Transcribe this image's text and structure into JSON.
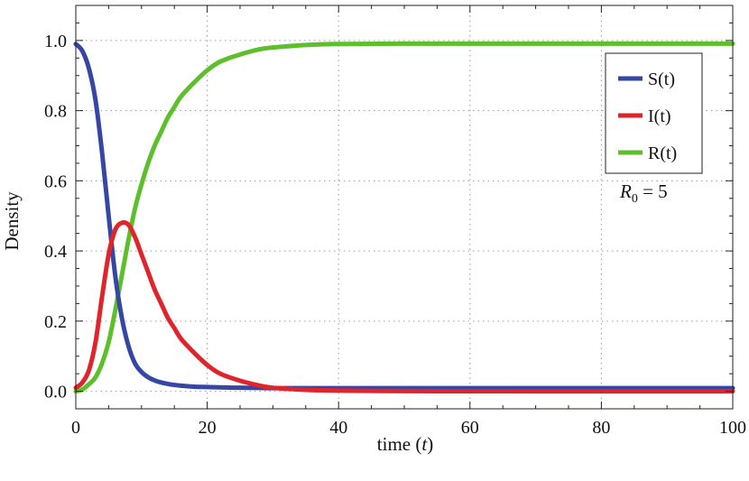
{
  "chart_data": {
    "type": "line",
    "xlabel_prefix": "time (",
    "xlabel_var": "t",
    "xlabel_suffix": ")",
    "ylabel": "Density",
    "xlim": [
      0,
      100
    ],
    "ylim": [
      -0.05,
      1.1
    ],
    "xticks": [
      0,
      20,
      40,
      60,
      80,
      100
    ],
    "yticks": [
      0.0,
      0.2,
      0.4,
      0.6,
      0.8,
      1.0
    ],
    "ytick_labels": [
      "0.0",
      "0.2",
      "0.4",
      "0.6",
      "0.8",
      "1.0"
    ],
    "grid": "dotted",
    "legend_position": "top-right",
    "x": [
      0,
      1,
      2,
      3,
      4,
      5,
      6,
      7,
      8,
      9,
      10,
      11,
      12,
      13,
      14,
      15,
      16,
      18,
      20,
      22,
      25,
      28,
      30,
      35,
      40,
      50,
      60,
      70,
      80,
      90,
      100
    ],
    "series": [
      {
        "name": "S(t)",
        "color": "#3646a3",
        "values": [
          0.99,
          0.97,
          0.92,
          0.83,
          0.68,
          0.5,
          0.33,
          0.21,
          0.13,
          0.08,
          0.055,
          0.04,
          0.031,
          0.025,
          0.021,
          0.018,
          0.016,
          0.013,
          0.012,
          0.011,
          0.01,
          0.0095,
          0.009,
          0.009,
          0.009,
          0.009,
          0.009,
          0.009,
          0.009,
          0.009,
          0.009
        ]
      },
      {
        "name": "I(t)",
        "color": "#e0242b",
        "values": [
          0.01,
          0.025,
          0.06,
          0.14,
          0.27,
          0.39,
          0.46,
          0.48,
          0.475,
          0.44,
          0.39,
          0.34,
          0.29,
          0.25,
          0.21,
          0.18,
          0.15,
          0.11,
          0.075,
          0.05,
          0.03,
          0.016,
          0.01,
          0.004,
          0.002,
          0.0005,
          0.0002,
          0.0,
          0.0,
          0.0,
          0.0
        ]
      },
      {
        "name": "R(t)",
        "color": "#5dbf2c",
        "values": [
          0.0,
          0.005,
          0.02,
          0.04,
          0.08,
          0.14,
          0.23,
          0.33,
          0.43,
          0.52,
          0.59,
          0.65,
          0.7,
          0.74,
          0.78,
          0.81,
          0.84,
          0.88,
          0.915,
          0.94,
          0.96,
          0.975,
          0.98,
          0.987,
          0.99,
          0.991,
          0.991,
          0.991,
          0.991,
          0.991,
          0.991
        ]
      }
    ],
    "annotation_var": "R",
    "annotation_sub": "0",
    "annotation_rest": " =  5"
  }
}
